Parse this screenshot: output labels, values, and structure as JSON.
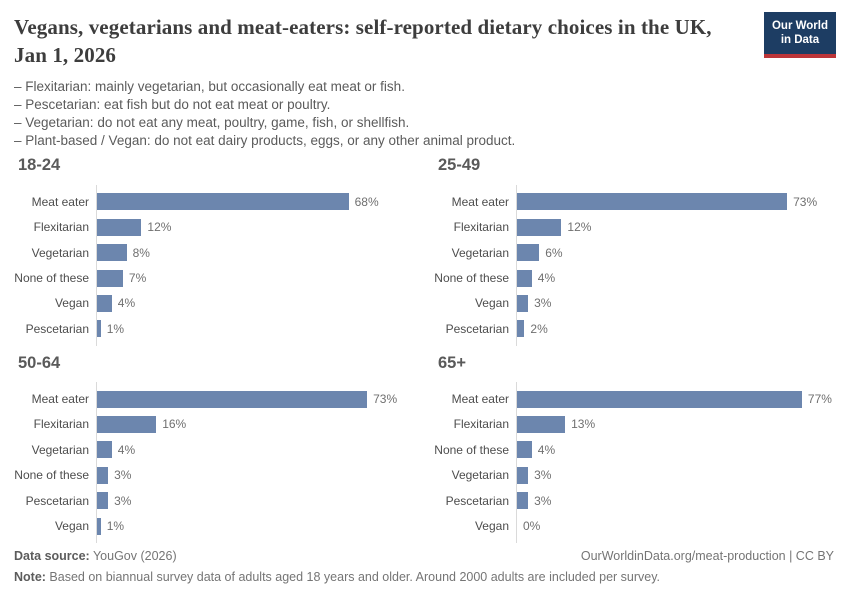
{
  "header": {
    "title": "Vegans, vegetarians and meat-eaters: self-reported dietary choices in the UK, Jan 1, 2026",
    "logo": {
      "line1": "Our World",
      "line2": "in Data"
    },
    "definitions": [
      "– Flexitarian: mainly vegetarian, but occasionally eat meat or fish.",
      "– Pescetarian: eat fish but do not eat meat or poultry.",
      "– Vegetarian: do not eat any meat, poultry, game, fish, or shellfish.",
      "– Plant-based / Vegan: do not eat dairy products, eggs, or any other animal product."
    ]
  },
  "chart_data": {
    "type": "bar",
    "orientation": "horizontal",
    "unit": "%",
    "bar_color": "#6c86ae",
    "xlim": [
      0,
      80
    ],
    "grid": false,
    "legend": "none",
    "facets": [
      {
        "title": "18-24",
        "categories": [
          "Meat eater",
          "Flexitarian",
          "Vegetarian",
          "None of these",
          "Vegan",
          "Pescetarian"
        ],
        "values": [
          68,
          12,
          8,
          7,
          4,
          1
        ]
      },
      {
        "title": "25-49",
        "categories": [
          "Meat eater",
          "Flexitarian",
          "Vegetarian",
          "None of these",
          "Vegan",
          "Pescetarian"
        ],
        "values": [
          73,
          12,
          6,
          4,
          3,
          2
        ]
      },
      {
        "title": "50-64",
        "categories": [
          "Meat eater",
          "Flexitarian",
          "Vegetarian",
          "None of these",
          "Pescetarian",
          "Vegan"
        ],
        "values": [
          73,
          16,
          4,
          3,
          3,
          1
        ]
      },
      {
        "title": "65+",
        "categories": [
          "Meat eater",
          "Flexitarian",
          "None of these",
          "Vegetarian",
          "Pescetarian",
          "Vegan"
        ],
        "values": [
          77,
          13,
          4,
          3,
          3,
          0
        ]
      }
    ]
  },
  "footer": {
    "data_source_label": "Data source:",
    "data_source_value": " YouGov (2026)",
    "link": "OurWorldinData.org/meat-production | CC BY",
    "note_label": "Note:",
    "note_value": " Based on biannual survey data of adults aged 18 years and older. Around 2000 adults are included per survey."
  },
  "colors": {
    "bar": "#6c86ae",
    "logo_background": "#1d3d63",
    "logo_stripe": "#bc3539",
    "axis_line": "#dadada"
  }
}
